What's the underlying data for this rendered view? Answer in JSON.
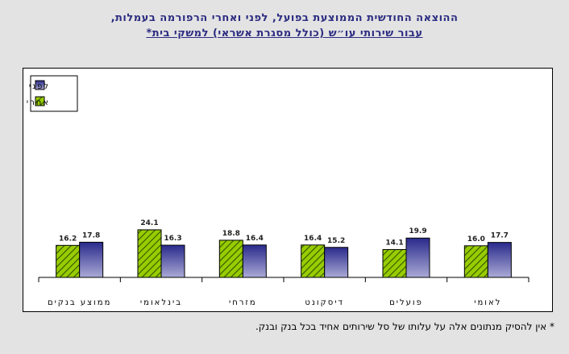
{
  "title_line1": "ההוצאה החודשית הממוצעת בפועל, לפני ואחרי הרפורמה בעמלות,",
  "title_line2": "עבור שירותי עו״ש (כולל מסגרת אשראי) למשקי בית*",
  "footnote": "* אין להסיק מנתונים אלה על עלותו של סל שירותים אחיד בכל בנק ובנק.",
  "colors": {
    "before_top": "#2a2a8c",
    "before_bottom": "#aaaad6",
    "after_fill": "#99cc00",
    "after_hatch": "#2e5500"
  },
  "chart_data": {
    "type": "bar",
    "categories": [
      "לאומי",
      "פועלים",
      "דיסקונט",
      "מזרחי",
      "בינלאומי",
      "ממוצע בנקים"
    ],
    "series": [
      {
        "name": "לפני",
        "values": [
          17.7,
          19.9,
          15.2,
          16.4,
          16.3,
          17.8
        ]
      },
      {
        "name": "אחרי",
        "values": [
          16.0,
          14.1,
          16.4,
          18.8,
          24.1,
          16.2
        ]
      }
    ],
    "ylim": [
      0,
      30
    ],
    "legend": "top-left",
    "grid": false,
    "data_labels": true
  }
}
